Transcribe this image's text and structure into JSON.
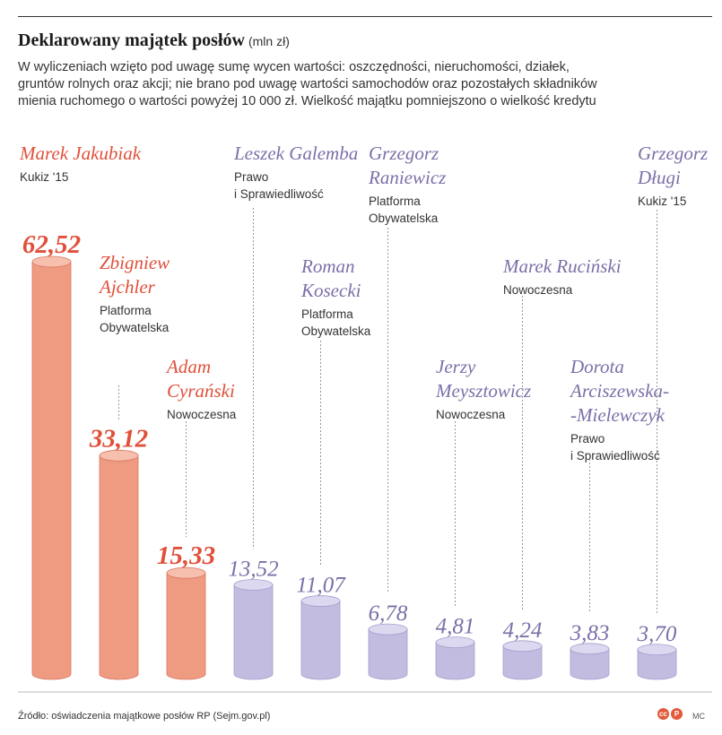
{
  "header": {
    "title": "Deklarowany majątek posłów",
    "unit": "(mln zł)",
    "subtitle_lines": [
      "W wyliczeniach wzięto pod uwagę sumę wycen wartości: oszczędności, nieruchomości, działek,",
      "gruntów rolnych oraz akcji; nie brano pod uwagę wartości samochodów oraz pozostałych składników",
      "mienia ruchomego o wartości powyżej 10 000 zł. Wielkość majątku pomniejszono o wielkość kredytu"
    ]
  },
  "chart_data": {
    "type": "bar",
    "title": "Deklarowany majątek posłów",
    "ylabel": "mln zł",
    "ylim": [
      0,
      70
    ],
    "grid": false,
    "categories": [
      "Marek Jakubiak",
      "Zbigniew Ajchler",
      "Adam Cyrański",
      "Leszek Galemba",
      "Roman Kosecki",
      "Grzegorz Raniewicz",
      "Jerzy Meysztowicz",
      "Marek Ruciński",
      "Dorota Arciszewska-Mielewczyk",
      "Grzegorz Długi"
    ],
    "values": [
      62.52,
      33.12,
      15.33,
      13.52,
      11.07,
      6.78,
      4.81,
      4.24,
      3.83,
      3.7
    ],
    "bars": [
      {
        "value": 62.52,
        "value_label": "62,52",
        "name_lines": [
          "Marek Jakubiak"
        ],
        "party_lines": [
          "Kukiz '15"
        ],
        "group": "red"
      },
      {
        "value": 33.12,
        "value_label": "33,12",
        "name_lines": [
          "Zbigniew",
          "Ajchler"
        ],
        "party_lines": [
          "Platforma",
          "Obywatelska"
        ],
        "group": "red"
      },
      {
        "value": 15.33,
        "value_label": "15,33",
        "name_lines": [
          "Adam",
          "Cyrański"
        ],
        "party_lines": [
          "Nowoczesna"
        ],
        "group": "red"
      },
      {
        "value": 13.52,
        "value_label": "13,52",
        "name_lines": [
          "Leszek Galemba"
        ],
        "party_lines": [
          "Prawo",
          "i Sprawiedliwość"
        ],
        "group": "purple"
      },
      {
        "value": 11.07,
        "value_label": "11,07",
        "name_lines": [
          "Roman",
          "Kosecki"
        ],
        "party_lines": [
          "Platforma",
          "Obywatelska"
        ],
        "group": "purple"
      },
      {
        "value": 6.78,
        "value_label": "6,78",
        "name_lines": [
          "Grzegorz",
          "Raniewicz"
        ],
        "party_lines": [
          "Platforma",
          "Obywatelska"
        ],
        "group": "purple"
      },
      {
        "value": 4.81,
        "value_label": "4,81",
        "name_lines": [
          "Jerzy",
          "Meysztowicz"
        ],
        "party_lines": [
          "Nowoczesna"
        ],
        "group": "purple"
      },
      {
        "value": 4.24,
        "value_label": "4,24",
        "name_lines": [
          "Marek Ruciński"
        ],
        "party_lines": [
          "Nowoczesna"
        ],
        "group": "purple"
      },
      {
        "value": 3.83,
        "value_label": "3,83",
        "name_lines": [
          "Dorota",
          "Arciszewska-",
          "-Mielewczyk"
        ],
        "party_lines": [
          "Prawo",
          "i Sprawiedliwość"
        ],
        "group": "purple"
      },
      {
        "value": 3.7,
        "value_label": "3,70",
        "name_lines": [
          "Grzegorz",
          "Długi"
        ],
        "party_lines": [
          "Kukiz '15"
        ],
        "group": "purple"
      }
    ]
  },
  "colors": {
    "red_text": "#e0503a",
    "purple_text": "#7c6fa8",
    "red_bar": "#ee9b82",
    "red_bar_top": "#f6bfae",
    "red_bar_edge": "#d9785d",
    "purple_bar": "#c2bce0",
    "purple_bar_top": "#dcd8f0",
    "purple_bar_edge": "#a59dcc",
    "value_text": "#7c6fa8"
  },
  "footer": {
    "source": "Źródło: oświadczenia majątkowe posłów RP (Sejm.gov.pl)",
    "cc1": "cc",
    "cc2": "P",
    "author": "MC"
  }
}
